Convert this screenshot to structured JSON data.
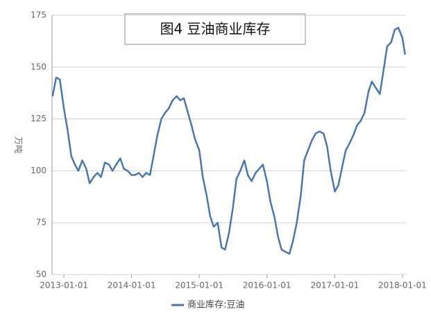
{
  "chart_data": {
    "type": "line",
    "title": "图4 豆油商业库存",
    "y_label": "万吨",
    "x": [
      "2012-11-01",
      "2012-11-20",
      "2012-12-10",
      "2013-01-01",
      "2013-01-20",
      "2013-02-10",
      "2013-03-01",
      "2013-03-20",
      "2013-04-10",
      "2013-05-01",
      "2013-05-20",
      "2013-06-10",
      "2013-07-01",
      "2013-07-20",
      "2013-08-10",
      "2013-09-01",
      "2013-09-20",
      "2013-10-10",
      "2013-11-01",
      "2013-11-20",
      "2013-12-10",
      "2014-01-01",
      "2014-01-20",
      "2014-02-10",
      "2014-03-01",
      "2014-03-20",
      "2014-04-10",
      "2014-05-01",
      "2014-05-20",
      "2014-06-10",
      "2014-07-01",
      "2014-07-20",
      "2014-08-10",
      "2014-09-01",
      "2014-09-20",
      "2014-10-10",
      "2014-11-01",
      "2014-11-20",
      "2014-12-10",
      "2015-01-01",
      "2015-01-20",
      "2015-02-10",
      "2015-03-01",
      "2015-03-20",
      "2015-04-10",
      "2015-05-01",
      "2015-05-20",
      "2015-06-10",
      "2015-07-01",
      "2015-07-20",
      "2015-08-10",
      "2015-09-01",
      "2015-09-20",
      "2015-10-10",
      "2015-11-01",
      "2015-11-20",
      "2015-12-10",
      "2016-01-01",
      "2016-01-20",
      "2016-02-10",
      "2016-03-01",
      "2016-03-20",
      "2016-04-10",
      "2016-05-01",
      "2016-05-20",
      "2016-06-10",
      "2016-07-01",
      "2016-07-20",
      "2016-08-10",
      "2016-09-01",
      "2016-09-20",
      "2016-10-10",
      "2016-11-01",
      "2016-11-20",
      "2016-12-10",
      "2017-01-01",
      "2017-01-20",
      "2017-02-10",
      "2017-03-01",
      "2017-03-20",
      "2017-04-10",
      "2017-05-01",
      "2017-05-20",
      "2017-06-10",
      "2017-07-01",
      "2017-07-20",
      "2017-08-10",
      "2017-09-01",
      "2017-09-20",
      "2017-10-10",
      "2017-11-01",
      "2017-11-20",
      "2017-12-10",
      "2018-01-01",
      "2018-01-15"
    ],
    "series": [
      {
        "name": "商业库存:豆油",
        "color": "#4a76ad",
        "values": [
          136,
          145,
          144,
          130,
          120,
          107,
          103,
          100,
          105,
          101,
          94,
          97,
          99,
          97,
          104,
          103,
          100,
          103,
          106,
          101,
          100,
          98,
          98,
          99,
          97,
          99,
          98,
          108,
          117,
          125,
          128,
          130,
          134,
          136,
          134,
          135,
          128,
          122,
          115,
          110,
          97,
          88,
          78,
          73,
          75,
          63,
          62,
          70,
          82,
          96,
          100,
          105,
          98,
          95,
          99,
          101,
          103,
          95,
          85,
          78,
          68,
          62,
          61,
          60,
          66,
          75,
          88,
          105,
          110,
          115,
          118,
          119,
          118,
          112,
          100,
          90,
          93,
          102,
          110,
          113,
          117,
          122,
          124,
          128,
          138,
          143,
          140,
          137,
          148,
          160,
          162,
          168,
          169,
          164,
          156
        ]
      }
    ],
    "xlim": [
      "2012-10-29",
      "2018-01-20"
    ],
    "xticks": [
      "2013-01-01",
      "2014-01-01",
      "2015-01-01",
      "2016-01-01",
      "2017-01-01",
      "2018-01-01"
    ],
    "ylim": [
      50,
      175
    ],
    "yticks": [
      50,
      75,
      100,
      125,
      150,
      175
    ],
    "grid": true,
    "legend": "bottom"
  }
}
